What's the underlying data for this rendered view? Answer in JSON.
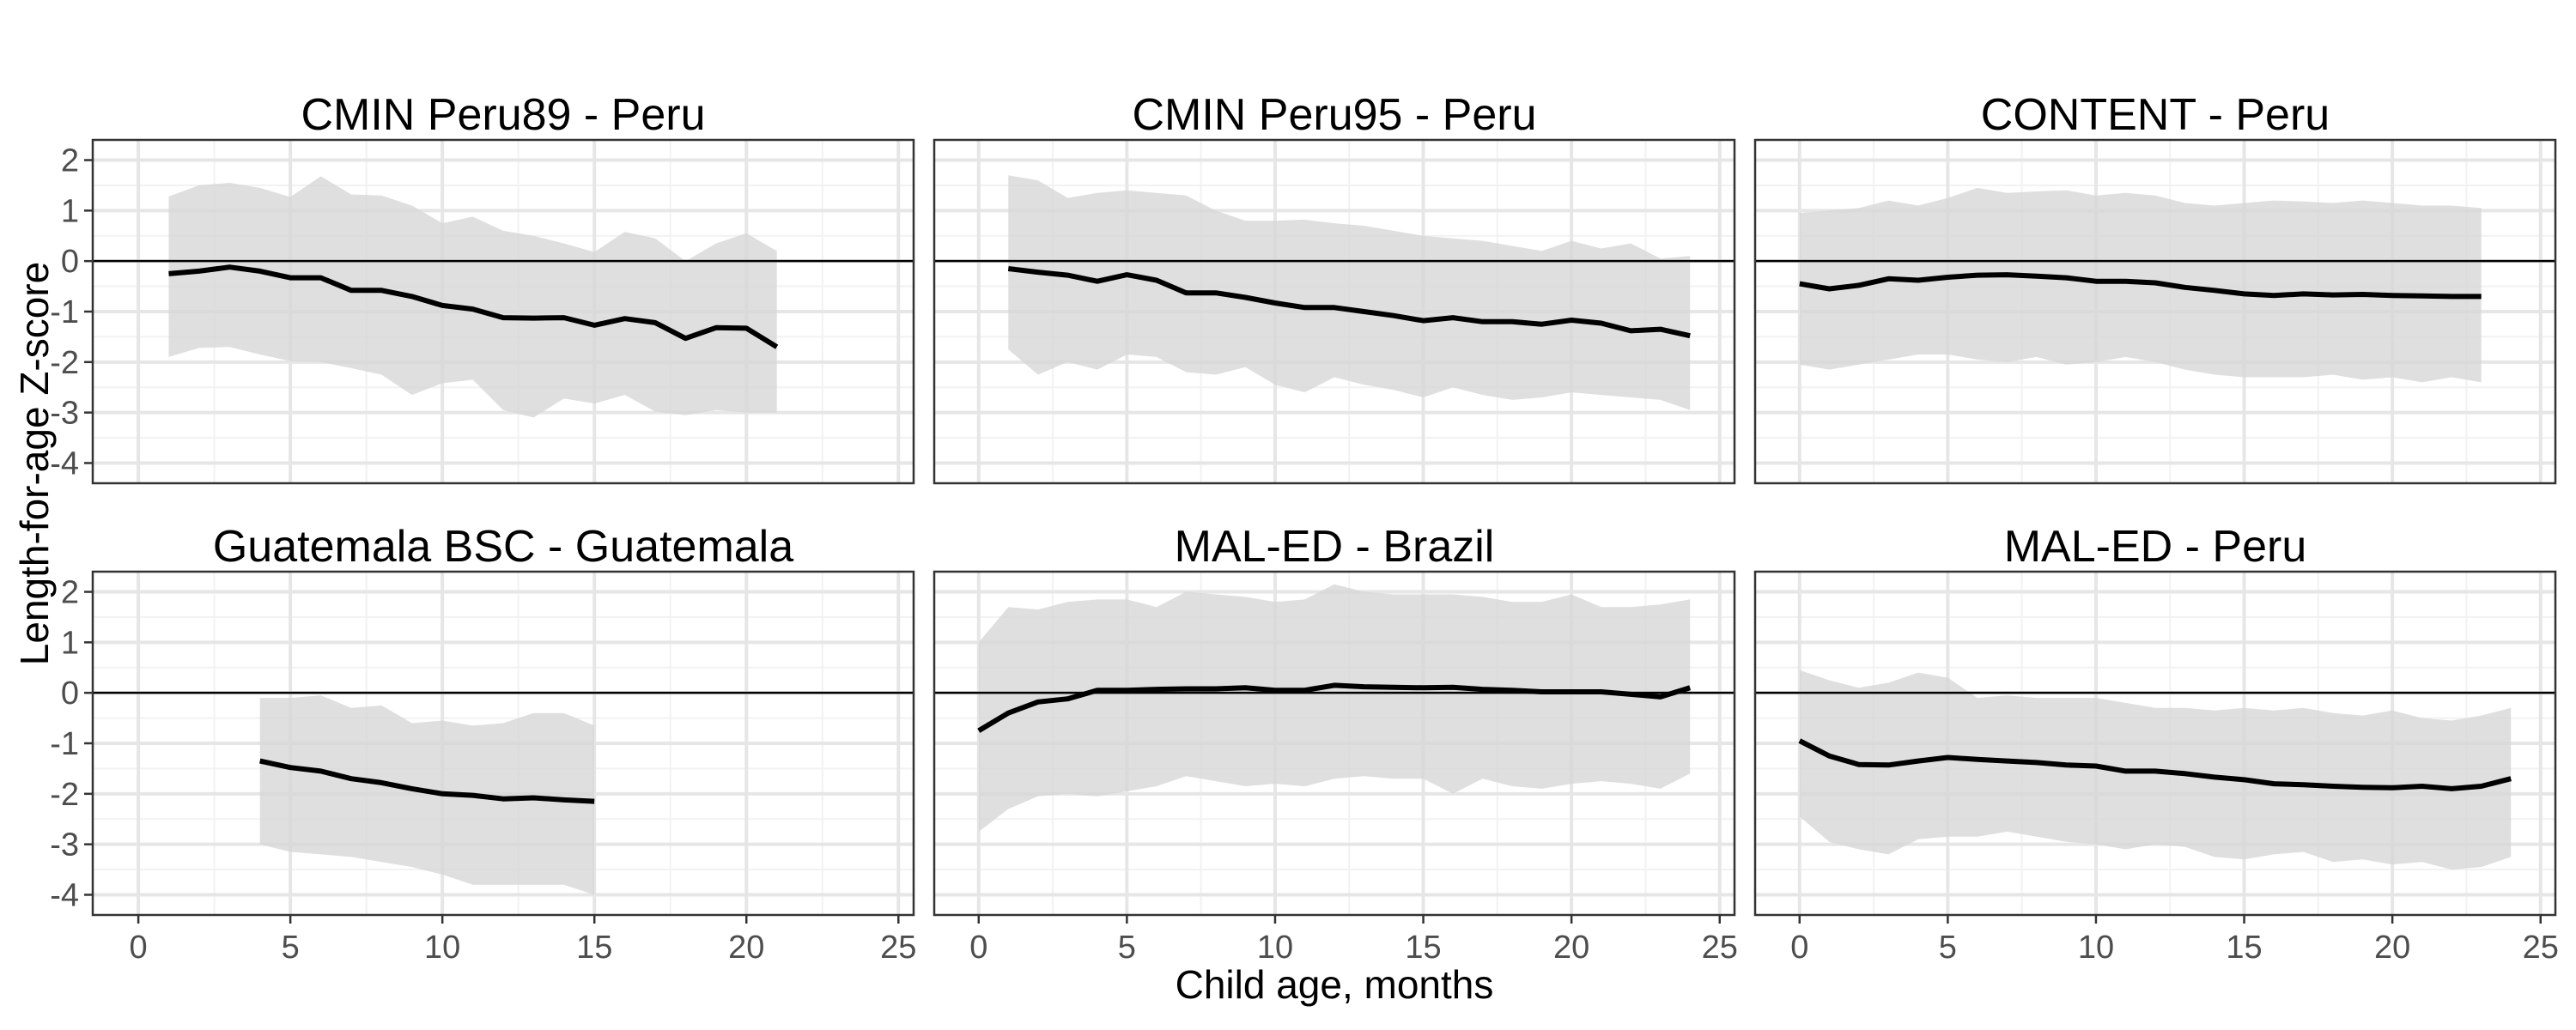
{
  "chart_data": {
    "type": "line",
    "xlabel": "Child age, months",
    "ylabel": "Length-for-age Z-score",
    "xlim": [
      -1.5,
      25.5
    ],
    "ylim": [
      -4.4,
      2.4
    ],
    "xticks": [
      0,
      5,
      10,
      15,
      20,
      25
    ],
    "yticks": [
      -4,
      -3,
      -2,
      -1,
      0,
      1,
      2
    ],
    "reference_line_y": 0,
    "grid": true,
    "panels": [
      {
        "title": "CMIN Peru89 - Peru",
        "x": [
          1,
          2,
          3,
          4,
          5,
          6,
          7,
          8,
          9,
          10,
          11,
          12,
          13,
          14,
          15,
          16,
          17,
          18,
          19,
          20,
          21
        ],
        "mean": [
          -0.25,
          -0.2,
          -0.12,
          -0.2,
          -0.33,
          -0.33,
          -0.58,
          -0.58,
          -0.7,
          -0.88,
          -0.95,
          -1.12,
          -1.13,
          -1.12,
          -1.27,
          -1.14,
          -1.22,
          -1.53,
          -1.32,
          -1.33,
          -1.7
        ],
        "upper": [
          1.28,
          1.5,
          1.55,
          1.45,
          1.27,
          1.68,
          1.32,
          1.3,
          1.1,
          0.75,
          0.88,
          0.6,
          0.5,
          0.35,
          0.18,
          0.58,
          0.45,
          0.0,
          0.35,
          0.55,
          0.2
        ],
        "lower": [
          -1.9,
          -1.72,
          -1.7,
          -1.85,
          -1.98,
          -2.0,
          -2.12,
          -2.25,
          -2.65,
          -2.42,
          -2.35,
          -2.95,
          -3.1,
          -2.72,
          -2.82,
          -2.65,
          -2.98,
          -3.05,
          -2.95,
          -3.0,
          -3.0
        ]
      },
      {
        "title": "CMIN Peru95 - Peru",
        "x": [
          1,
          2,
          3,
          4,
          5,
          6,
          7,
          8,
          9,
          10,
          11,
          12,
          13,
          14,
          15,
          16,
          17,
          18,
          19,
          20,
          21,
          22,
          23,
          24
        ],
        "mean": [
          -0.15,
          -0.22,
          -0.28,
          -0.4,
          -0.27,
          -0.38,
          -0.63,
          -0.63,
          -0.72,
          -0.83,
          -0.92,
          -0.92,
          -1.0,
          -1.08,
          -1.18,
          -1.12,
          -1.2,
          -1.2,
          -1.25,
          -1.17,
          -1.23,
          -1.38,
          -1.35,
          -1.48
        ],
        "upper": [
          1.7,
          1.6,
          1.25,
          1.35,
          1.4,
          1.35,
          1.3,
          1.0,
          0.8,
          0.8,
          0.82,
          0.75,
          0.7,
          0.6,
          0.5,
          0.45,
          0.4,
          0.3,
          0.2,
          0.4,
          0.25,
          0.35,
          0.05,
          0.1
        ],
        "lower": [
          -1.75,
          -2.25,
          -2.0,
          -2.15,
          -1.85,
          -1.9,
          -2.2,
          -2.25,
          -2.1,
          -2.45,
          -2.6,
          -2.3,
          -2.45,
          -2.55,
          -2.7,
          -2.5,
          -2.65,
          -2.75,
          -2.7,
          -2.6,
          -2.65,
          -2.7,
          -2.75,
          -2.95
        ]
      },
      {
        "title": "CONTENT - Peru",
        "x": [
          0,
          1,
          2,
          3,
          4,
          5,
          6,
          7,
          8,
          9,
          10,
          11,
          12,
          13,
          14,
          15,
          16,
          17,
          18,
          19,
          20,
          21,
          22,
          23
        ],
        "mean": [
          -0.45,
          -0.55,
          -0.48,
          -0.35,
          -0.38,
          -0.32,
          -0.28,
          -0.27,
          -0.3,
          -0.33,
          -0.4,
          -0.4,
          -0.43,
          -0.52,
          -0.58,
          -0.65,
          -0.68,
          -0.65,
          -0.67,
          -0.66,
          -0.68,
          -0.69,
          -0.7,
          -0.7
        ],
        "upper": [
          0.95,
          1.0,
          1.05,
          1.2,
          1.1,
          1.25,
          1.45,
          1.35,
          1.38,
          1.4,
          1.3,
          1.35,
          1.3,
          1.15,
          1.1,
          1.15,
          1.2,
          1.18,
          1.15,
          1.2,
          1.15,
          1.1,
          1.1,
          1.05
        ],
        "lower": [
          -2.05,
          -2.15,
          -2.05,
          -1.95,
          -1.85,
          -1.85,
          -1.95,
          -2.0,
          -1.9,
          -2.05,
          -2.0,
          -1.9,
          -2.0,
          -2.15,
          -2.25,
          -2.3,
          -2.3,
          -2.3,
          -2.25,
          -2.35,
          -2.3,
          -2.4,
          -2.3,
          -2.4
        ]
      },
      {
        "title": "Guatemala BSC - Guatemala",
        "x": [
          4,
          5,
          6,
          7,
          8,
          9,
          10,
          11,
          12,
          13,
          14,
          15
        ],
        "mean": [
          -1.35,
          -1.48,
          -1.55,
          -1.7,
          -1.78,
          -1.9,
          -2.0,
          -2.03,
          -2.1,
          -2.08,
          -2.12,
          -2.15
        ],
        "upper": [
          -0.1,
          -0.1,
          -0.05,
          -0.3,
          -0.25,
          -0.6,
          -0.55,
          -0.65,
          -0.6,
          -0.4,
          -0.4,
          -0.65
        ],
        "lower": [
          -3.0,
          -3.15,
          -3.2,
          -3.25,
          -3.35,
          -3.45,
          -3.6,
          -3.8,
          -3.8,
          -3.8,
          -3.8,
          -4.0
        ]
      },
      {
        "title": "MAL-ED - Brazil",
        "x": [
          0,
          1,
          2,
          3,
          4,
          5,
          6,
          7,
          8,
          9,
          10,
          11,
          12,
          13,
          14,
          15,
          16,
          17,
          18,
          19,
          20,
          21,
          22,
          23,
          24
        ],
        "mean": [
          -0.75,
          -0.4,
          -0.18,
          -0.12,
          0.05,
          0.05,
          0.07,
          0.08,
          0.08,
          0.1,
          0.05,
          0.05,
          0.15,
          0.12,
          0.11,
          0.1,
          0.11,
          0.07,
          0.05,
          0.02,
          0.02,
          0.02,
          -0.03,
          -0.08,
          0.1
        ],
        "upper": [
          1.0,
          1.7,
          1.65,
          1.8,
          1.85,
          1.85,
          1.7,
          2.0,
          1.95,
          1.9,
          1.8,
          1.85,
          2.15,
          2.0,
          1.95,
          1.95,
          1.95,
          1.9,
          1.8,
          1.8,
          1.95,
          1.7,
          1.7,
          1.75,
          1.85
        ],
        "lower": [
          -2.75,
          -2.3,
          -2.05,
          -2.0,
          -2.05,
          -1.95,
          -1.85,
          -1.65,
          -1.75,
          -1.85,
          -1.8,
          -1.85,
          -1.7,
          -1.65,
          -1.7,
          -1.7,
          -2.0,
          -1.7,
          -1.85,
          -1.9,
          -1.8,
          -1.75,
          -1.8,
          -1.9,
          -1.6
        ]
      },
      {
        "title": "MAL-ED - Peru",
        "x": [
          0,
          1,
          2,
          3,
          4,
          5,
          6,
          7,
          8,
          9,
          10,
          11,
          12,
          13,
          14,
          15,
          16,
          17,
          18,
          19,
          20,
          21,
          22,
          23,
          24
        ],
        "mean": [
          -0.95,
          -1.25,
          -1.42,
          -1.43,
          -1.35,
          -1.28,
          -1.32,
          -1.35,
          -1.38,
          -1.43,
          -1.45,
          -1.55,
          -1.55,
          -1.6,
          -1.67,
          -1.72,
          -1.8,
          -1.82,
          -1.85,
          -1.87,
          -1.88,
          -1.85,
          -1.9,
          -1.85,
          -1.7
        ],
        "upper": [
          0.45,
          0.25,
          0.1,
          0.2,
          0.4,
          0.3,
          -0.1,
          -0.05,
          -0.1,
          -0.1,
          -0.1,
          -0.2,
          -0.3,
          -0.3,
          -0.35,
          -0.3,
          -0.35,
          -0.3,
          -0.4,
          -0.45,
          -0.35,
          -0.5,
          -0.55,
          -0.45,
          -0.3
        ],
        "lower": [
          -2.45,
          -2.95,
          -3.1,
          -3.2,
          -2.9,
          -2.85,
          -2.85,
          -2.75,
          -2.85,
          -2.95,
          -3.0,
          -3.1,
          -3.0,
          -3.05,
          -3.25,
          -3.3,
          -3.2,
          -3.15,
          -3.35,
          -3.3,
          -3.4,
          -3.35,
          -3.5,
          -3.45,
          -3.25
        ]
      }
    ]
  }
}
